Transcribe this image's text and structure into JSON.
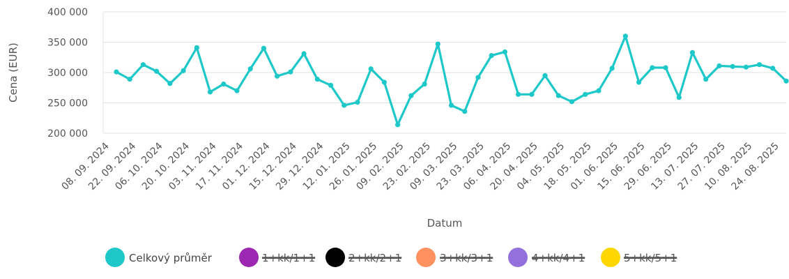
{
  "chart_data": {
    "type": "line",
    "xlabel": "Datum",
    "ylabel": "Cena (EUR)",
    "ylim": [
      200000,
      400000
    ],
    "y_ticks": [
      {
        "value": 400000,
        "label": "400 000"
      },
      {
        "value": 350000,
        "label": "350 000"
      },
      {
        "value": 300000,
        "label": "300 000"
      },
      {
        "value": 250000,
        "label": "250 000"
      },
      {
        "value": 200000,
        "label": "200 000"
      }
    ],
    "grid": true,
    "legend_position": "bottom",
    "x_tick_labels": [
      "08. 09. 2024",
      "22. 09. 2024",
      "06. 10. 2024",
      "20. 10. 2024",
      "03. 11. 2024",
      "17. 11. 2024",
      "01. 12. 2024",
      "15. 12. 2024",
      "29. 12. 2024",
      "12. 01. 2025",
      "26. 01. 2025",
      "09. 02. 2025",
      "23. 02. 2025",
      "09. 03. 2025",
      "23. 03. 2025",
      "06. 04. 2025",
      "20. 04. 2025",
      "04. 05. 2025",
      "18. 05. 2025",
      "01. 06. 2025",
      "15. 06. 2025",
      "29. 06. 2025",
      "13. 07. 2025",
      "27. 07. 2025",
      "10. 08. 2025",
      "24. 08. 2025"
    ],
    "points_per_tick": 2,
    "series": [
      {
        "name": "Celkový průměr",
        "color": "#1ec8c8",
        "visible": true,
        "values": [
          301000,
          289000,
          313000,
          302000,
          282000,
          303000,
          341000,
          268000,
          281000,
          270000,
          306000,
          340000,
          294000,
          301000,
          331000,
          289000,
          279000,
          246000,
          251000,
          306000,
          284000,
          214000,
          262000,
          281000,
          347000,
          246000,
          236000,
          292000,
          328000,
          334000,
          264000,
          264000,
          295000,
          262000,
          252000,
          264000,
          270000,
          307000,
          360000,
          284000,
          308000,
          308000,
          259000,
          333000,
          289000,
          311000,
          310000,
          309000,
          313000,
          307000,
          286000
        ]
      },
      {
        "name": "1+kk/1+1",
        "color": "#9c27b0",
        "visible": false,
        "values": []
      },
      {
        "name": "2+kk/2+1",
        "color": "#000000",
        "visible": false,
        "values": []
      },
      {
        "name": "3+kk/3+1",
        "color": "#ff9060",
        "visible": false,
        "values": []
      },
      {
        "name": "4+kk/4+1",
        "color": "#9370db",
        "visible": false,
        "values": []
      },
      {
        "name": "5+kk/5+1",
        "color": "#ffd700",
        "visible": false,
        "values": []
      }
    ]
  }
}
